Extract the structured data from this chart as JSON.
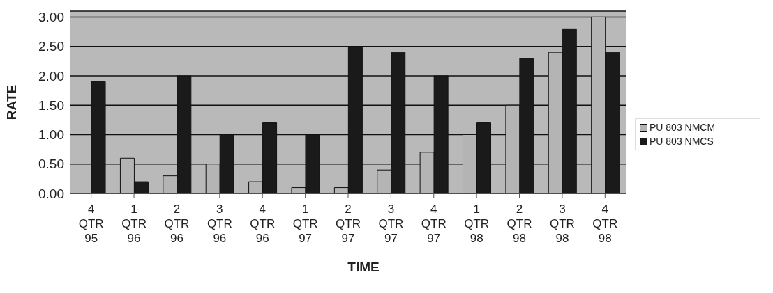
{
  "chart_data": {
    "type": "bar",
    "xlabel": "TIME",
    "ylabel": "RATE",
    "categories": [
      "4 QTR 95",
      "1 QTR 96",
      "2 QTR 96",
      "3 QTR 96",
      "4 QTR 96",
      "1 QTR 97",
      "2 QTR 97",
      "3 QTR 97",
      "4 QTR 97",
      "1 QTR 98",
      "2 QTR 98",
      "3 QTR 98",
      "4 QTR 98"
    ],
    "series": [
      {
        "name": "PU 803 NMCM",
        "color": "#b4b4b4",
        "values": [
          0,
          0.6,
          0.3,
          0.5,
          0.2,
          0.1,
          0.1,
          0.4,
          0.7,
          1.0,
          1.5,
          2.4,
          3.0
        ]
      },
      {
        "name": "PU 803 NMCS",
        "color": "#1a1a1a",
        "values": [
          1.9,
          0.2,
          2.0,
          1.0,
          1.2,
          1.0,
          2.5,
          2.4,
          2.0,
          1.2,
          2.3,
          2.8,
          2.4
        ]
      }
    ],
    "ylim": [
      0,
      3.1
    ],
    "yticks": [
      {
        "value": 0,
        "label": "0.00"
      },
      {
        "value": 0.5,
        "label": "0.50"
      },
      {
        "value": 1,
        "label": "1.00"
      },
      {
        "value": 1.5,
        "label": "1.50"
      },
      {
        "value": 2,
        "label": "2.00"
      },
      {
        "value": 2.5,
        "label": "2.50"
      },
      {
        "value": 3,
        "label": "3.00"
      }
    ],
    "grid": "y",
    "legend": "right"
  }
}
